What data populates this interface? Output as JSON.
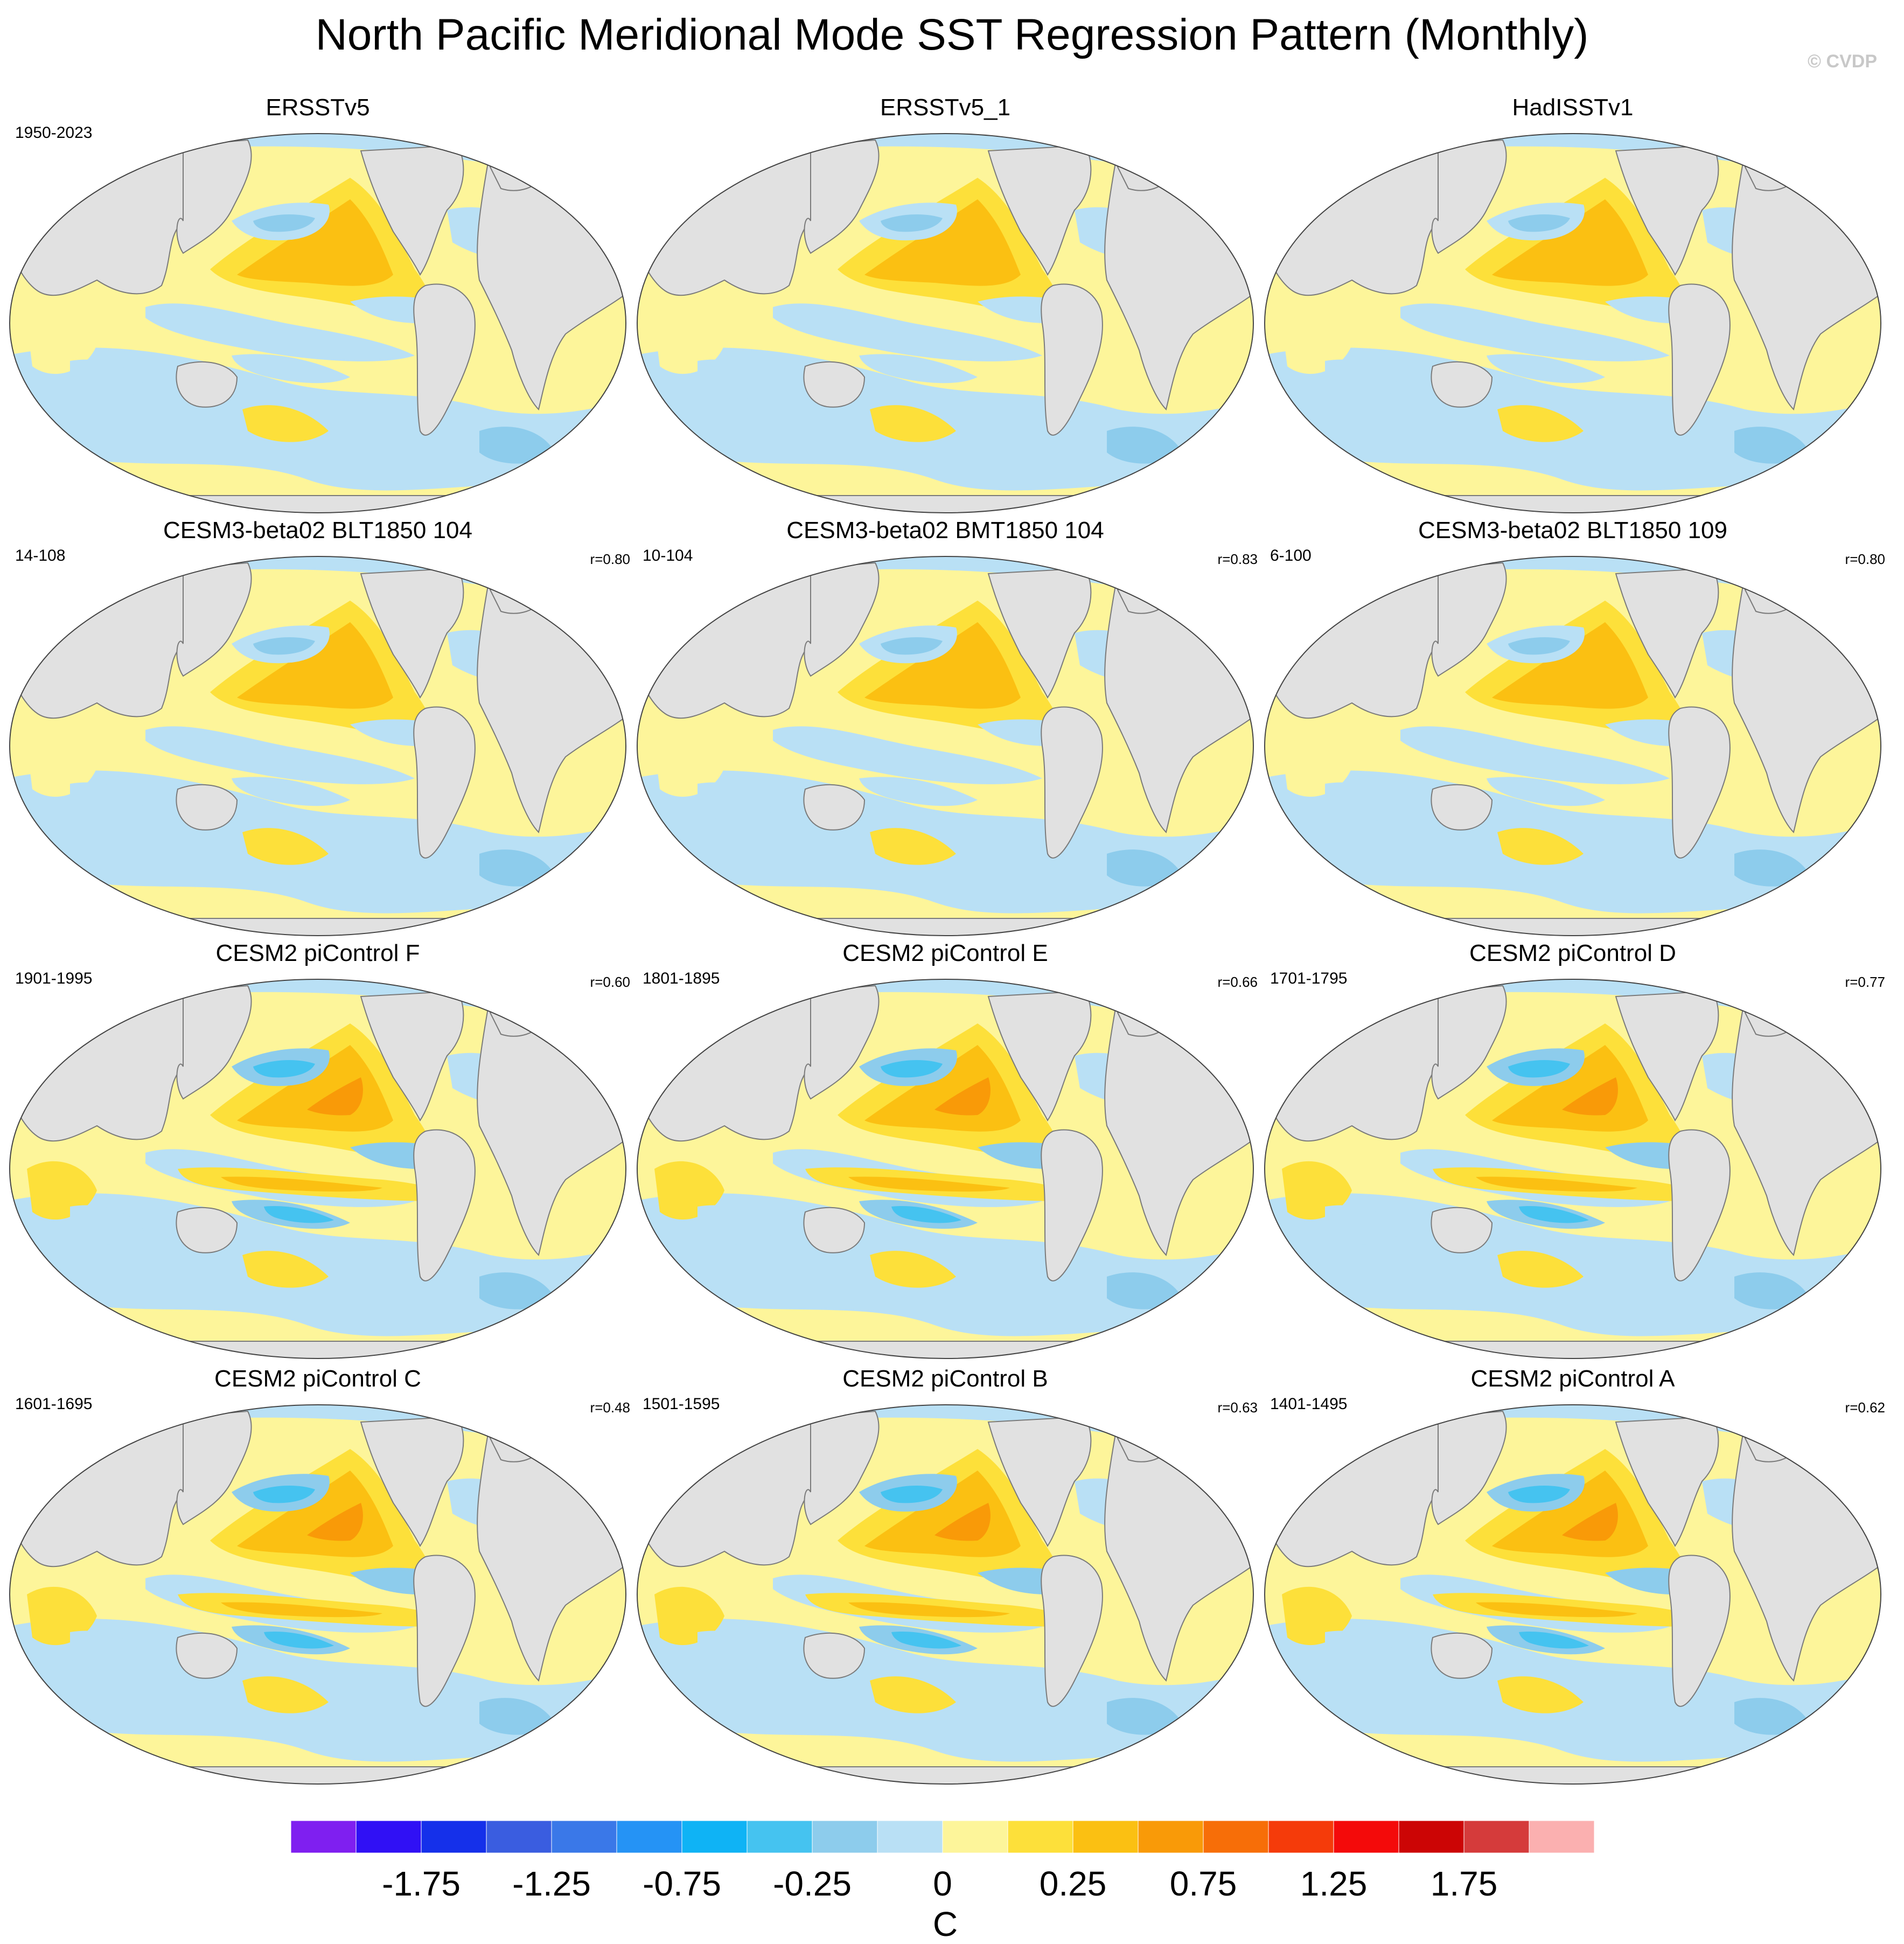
{
  "title": "North Pacific Meridional Mode SST Regression Pattern (Monthly)",
  "watermark": "© CVDP",
  "panels": [
    {
      "title": "ERSSTv5",
      "years": "1950-2023",
      "corr": ""
    },
    {
      "title": "ERSSTv5_1",
      "years": "",
      "corr": ""
    },
    {
      "title": "HadISSTv1",
      "years": "",
      "corr": ""
    },
    {
      "title": "CESM3-beta02 BLT1850 104",
      "years": "14-108",
      "corr": "r=0.80"
    },
    {
      "title": "CESM3-beta02 BMT1850 104",
      "years": "10-104",
      "corr": "r=0.83"
    },
    {
      "title": "CESM3-beta02 BLT1850 109",
      "years": "6-100",
      "corr": "r=0.80"
    },
    {
      "title": "CESM2 piControl F",
      "years": "1901-1995",
      "corr": "r=0.60"
    },
    {
      "title": "CESM2 piControl E",
      "years": "1801-1895",
      "corr": "r=0.66"
    },
    {
      "title": "CESM2 piControl D",
      "years": "1701-1795",
      "corr": "r=0.77"
    },
    {
      "title": "CESM2 piControl C",
      "years": "1601-1695",
      "corr": "r=0.48"
    },
    {
      "title": "CESM2 piControl B",
      "years": "1501-1595",
      "corr": "r=0.63"
    },
    {
      "title": "CESM2 piControl A",
      "years": "1401-1495",
      "corr": "r=0.62"
    }
  ],
  "colorbar": {
    "units": "C",
    "labels": [
      "-1.75",
      "-1.25",
      "-0.75",
      "-0.25",
      "0",
      "0.25",
      "0.75",
      "1.25",
      "1.75"
    ],
    "colors": [
      "#7f1ff0",
      "#3010f5",
      "#1530ea",
      "#3a5de0",
      "#3a78e8",
      "#2593f5",
      "#0fb3f5",
      "#45c3f0",
      "#8dccec",
      "#b9e0f5",
      "#fdf59a",
      "#fde03a",
      "#fbc012",
      "#f99a08",
      "#f76e08",
      "#f53b0a",
      "#f40a0a",
      "#cc0505",
      "#d53b3b",
      "#fbb0b0"
    ]
  },
  "map_colors": {
    "land": "#e1e1e1",
    "coast": "#7a7a7a",
    "warm_weak": "#fdf59a",
    "warm_mid": "#fde03a",
    "warm_strong": "#fbc012",
    "warm_max": "#f99a08",
    "cool_weak": "#b9e0f5",
    "cool_mid": "#8dccec",
    "cool_strong": "#45c3f0",
    "cool_max": "#0fb3f5"
  }
}
